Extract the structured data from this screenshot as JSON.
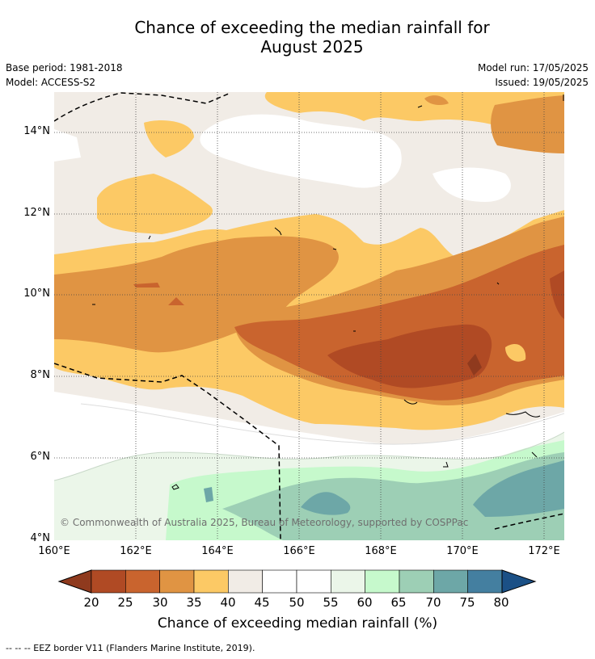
{
  "title": {
    "line1": "Chance of exceeding the median rainfall for",
    "line2": "August 2025"
  },
  "meta": {
    "base_period": "Base period: 1981-2018",
    "model": "Model: ACCESS-S2",
    "model_run": "Model run: 17/05/2025",
    "issued": "Issued: 19/05/2025"
  },
  "map": {
    "lat_labels": [
      "14°N",
      "12°N",
      "10°N",
      "8°N",
      "6°N",
      "4°N"
    ],
    "lon_labels": [
      "160°E",
      "162°E",
      "164°E",
      "166°E",
      "168°E",
      "170°E",
      "172°E"
    ],
    "copyright": "© Commonwealth of Australia 2025, Bureau of Meteorology, supported by COSPPac"
  },
  "colorbar": {
    "ticks": [
      "20",
      "25",
      "30",
      "35",
      "40",
      "45",
      "50",
      "55",
      "60",
      "65",
      "70",
      "75",
      "80"
    ],
    "label": "Chance of exceeding median rainfall (%)",
    "colors": {
      "lt20": "#8f3a1e",
      "20-25": "#b04a24",
      "25-30": "#c9642e",
      "30-35": "#e09443",
      "35-40": "#fcc965",
      "40-45": "#f1ece6",
      "45-50": "#ffffff",
      "50-55": "#ffffff",
      "55-60": "#ebf6e9",
      "60-65": "#c6f9cc",
      "65-70": "#9dcfb5",
      "70-75": "#6da7a7",
      "75-80": "#447fa0",
      "gt80": "#1b5086"
    }
  },
  "legend_note": "--  --  -- EEZ border V11 (Flanders Marine Institute, 2019)."
}
